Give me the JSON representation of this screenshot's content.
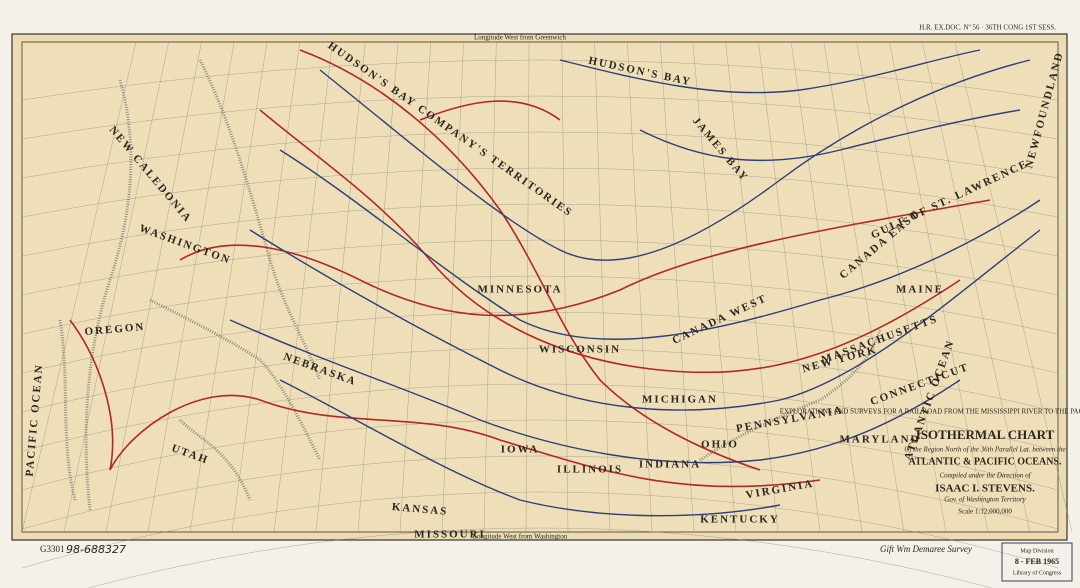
{
  "header": {
    "doc_ref": "H.R. EX.DOC. Nº 56 · 36TH CONG 1ST SESS.",
    "longitude_top": "Longitude West from Greenwich",
    "longitude_bottom": "Longitude West from Washington"
  },
  "title_block": {
    "survey": "EXPLORATIONS AND SURVEYS FOR A RAIL ROAD FROM THE MISSISSIPPI RIVER TO THE PACIFIC OCEAN. WAR DEPARTMENT.",
    "title": "ISOTHERMAL CHART",
    "subtitle": "Of the Region North of the 36th Parallel Lat. between the",
    "oceans": "ATLANTIC & PACIFIC OCEANS.",
    "compiled": "Compiled under the Direction of",
    "author": "ISAAC I. STEVENS.",
    "author_title": "Gov. of Washington Territory",
    "scale": "Scale 1:12,000,000"
  },
  "regions": [
    "HUDSON'S BAY",
    "JAMES BAY",
    "HUDSON'S BAY COMPANY'S TERRITORIES",
    "NEW CALEDONIA",
    "WASHINGTON",
    "OREGON",
    "NEBRASKA",
    "UTAH",
    "KANSAS",
    "MINNESOTA",
    "WISCONSIN",
    "IOWA",
    "ILLINOIS",
    "INDIANA",
    "OHIO",
    "MICHIGAN",
    "PENNSYLVANIA",
    "NEW YORK",
    "VIRGINIA",
    "KENTUCKY",
    "MISSOURI",
    "CANADA WEST",
    "CANADA EAST",
    "MAINE",
    "MASSACHUSETTS",
    "CONNECTICUT",
    "MARYLAND",
    "GULF OF ST. LAWRENCE",
    "NEWFOUNDLAND",
    "ATLANTIC OCEAN",
    "PACIFIC OCEAN"
  ],
  "stamp": {
    "division": "Map Division",
    "date": "8 - FEB 1965",
    "library": "Library of Congress"
  },
  "handwriting": {
    "shelf": "G3301",
    "call_number": "98-688327",
    "gift": "Gift Wm Demaree Survey"
  }
}
